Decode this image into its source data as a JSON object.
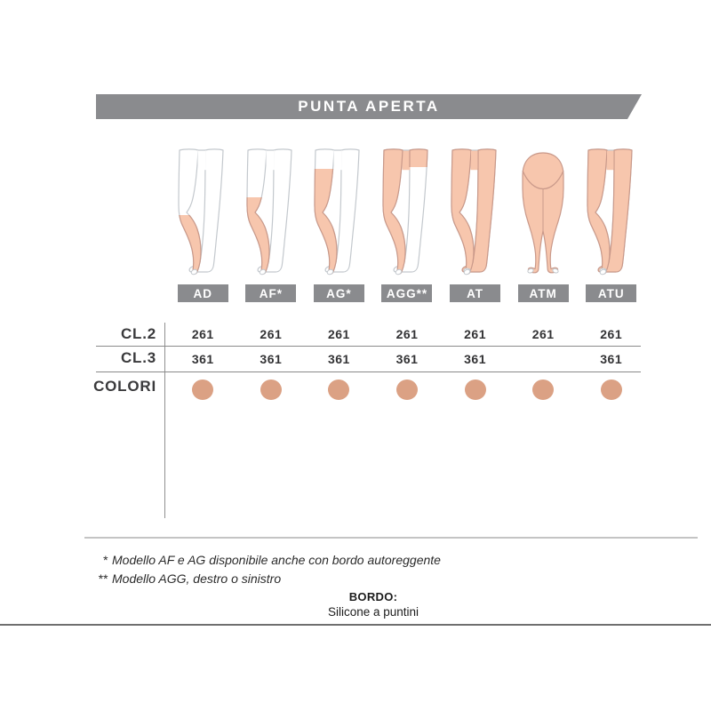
{
  "banner": {
    "title": "PUNTA APERTA"
  },
  "models": [
    {
      "id": "AD",
      "label": "AD",
      "coverage": "below-knee"
    },
    {
      "id": "AF",
      "label": "AF*",
      "coverage": "above-knee"
    },
    {
      "id": "AG",
      "label": "AG*",
      "coverage": "thigh"
    },
    {
      "id": "AGG",
      "label": "AGG**",
      "coverage": "full-leg"
    },
    {
      "id": "AT",
      "label": "AT",
      "coverage": "pantyhose"
    },
    {
      "id": "ATM",
      "label": "ATM",
      "coverage": "maternity"
    },
    {
      "id": "ATU",
      "label": "ATU",
      "coverage": "pantyhose"
    }
  ],
  "table": {
    "rows": [
      {
        "label": "CL.2",
        "type": "values",
        "values": [
          "261",
          "261",
          "261",
          "261",
          "261",
          "261",
          "261"
        ]
      },
      {
        "label": "CL.3",
        "type": "values",
        "values": [
          "361",
          "361",
          "361",
          "361",
          "361",
          "",
          "361"
        ]
      },
      {
        "label": "COLORI",
        "type": "dots",
        "values": [
          true,
          true,
          true,
          true,
          true,
          true,
          true
        ]
      }
    ]
  },
  "footnotes": [
    {
      "marker": "*",
      "text": "Modello AF e AG disponibile anche con bordo autoreggente"
    },
    {
      "marker": "**",
      "text": "Modello AGG, destro o sinistro"
    }
  ],
  "bordo": {
    "title": "BORDO:",
    "subtitle": "Silicone a puntini"
  },
  "colors": {
    "banner_gray": "#8a8b8e",
    "dot": "#dba184",
    "stocking_fill": "#f7c6ad",
    "stocking_outline": "#c9998a",
    "skin_outline": "#c3c8cd",
    "text_dark": "#3a3a3c"
  }
}
